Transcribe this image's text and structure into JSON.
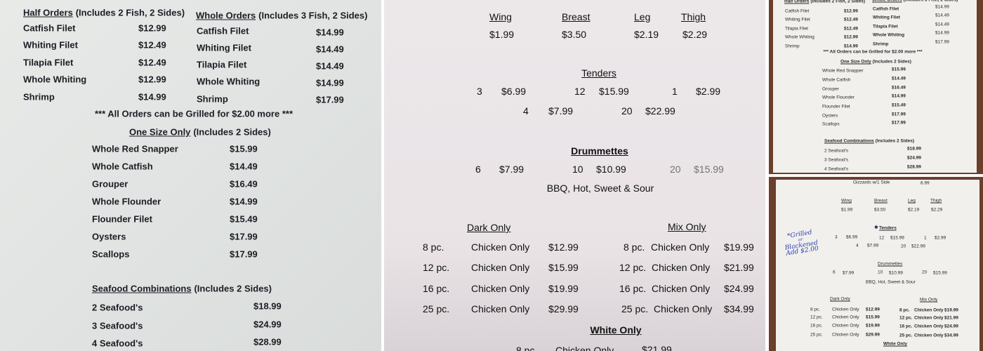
{
  "panel1": {
    "half_header": "Half Orders",
    "half_note": "(Includes 2 Fish, 2 Sides)",
    "whole_header": "Whole Orders",
    "whole_note": "(Includes 3 Fish, 2 Sides)",
    "half_items": [
      {
        "name": "Catfish Filet",
        "price": "$12.99"
      },
      {
        "name": "Whiting Filet",
        "price": "$12.49"
      },
      {
        "name": "Tilapia Filet",
        "price": "$12.49"
      },
      {
        "name": "Whole Whiting",
        "price": "$12.99"
      },
      {
        "name": "Shrimp",
        "price": "$14.99"
      }
    ],
    "whole_items": [
      {
        "name": "Catfish Filet",
        "price": "$14.99"
      },
      {
        "name": "Whiting Filet",
        "price": "$14.49"
      },
      {
        "name": "Tilapia Filet",
        "price": "$14.49"
      },
      {
        "name": "Whole Whiting",
        "price": "$14.99"
      },
      {
        "name": "Shrimp",
        "price": "$17.99"
      }
    ],
    "grilled_note": "*** All Orders can be Grilled for $2.00 more ***",
    "one_size_header": "One Size Only",
    "one_size_note": "(Includes 2 Sides)",
    "one_size_items": [
      {
        "name": "Whole Red Snapper",
        "price": "$15.99"
      },
      {
        "name": "Whole Catfish",
        "price": "$14.49"
      },
      {
        "name": "Grouper",
        "price": "$16.49"
      },
      {
        "name": "Whole Flounder",
        "price": "$14.99"
      },
      {
        "name": "Flounder Filet",
        "price": "$15.49"
      },
      {
        "name": "Oysters",
        "price": "$17.99"
      },
      {
        "name": "Scallops",
        "price": "$17.99"
      }
    ],
    "combo_header": "Seafood Combinations",
    "combo_note": "(Includes 2 Sides)",
    "combo_items": [
      {
        "name": "2 Seafood's",
        "price": "$18.99"
      },
      {
        "name": "3 Seafood's",
        "price": "$24.99"
      },
      {
        "name": "4 Seafood's",
        "price": "$28.99"
      }
    ]
  },
  "panel2": {
    "pieces": [
      {
        "name": "Wing",
        "price": "$1.99"
      },
      {
        "name": "Breast",
        "price": "$3.50"
      },
      {
        "name": "Leg",
        "price": "$2.19"
      },
      {
        "name": "Thigh",
        "price": "$2.29"
      }
    ],
    "tenders_header": "Tenders",
    "tenders": [
      {
        "qty": "3",
        "price": "$6.99"
      },
      {
        "qty": "12",
        "price": "$15.99"
      },
      {
        "qty": "1",
        "price": "$2.99"
      },
      {
        "qty": "4",
        "price": "$7.99"
      },
      {
        "qty": "20",
        "price": "$22.99"
      }
    ],
    "drummettes_header": "Drummettes",
    "drummettes": [
      {
        "qty": "6",
        "price": "$7.99"
      },
      {
        "qty": "10",
        "price": "$10.99"
      },
      {
        "qty": "20",
        "price": "$15.99"
      }
    ],
    "sauces": "BBQ, Hot, Sweet & Sour",
    "dark_header": "Dark Only",
    "mix_header": "Mix Only",
    "dark_items": [
      {
        "size": "8 pc.",
        "desc": "Chicken Only",
        "price": "$12.99"
      },
      {
        "size": "12 pc.",
        "desc": "Chicken Only",
        "price": "$15.99"
      },
      {
        "size": "16 pc.",
        "desc": "Chicken Only",
        "price": "$19.99"
      },
      {
        "size": "25 pc.",
        "desc": "Chicken Only",
        "price": "$29.99"
      }
    ],
    "mix_items": [
      {
        "size": "8 pc.",
        "desc": "Chicken Only",
        "price": "$19.99"
      },
      {
        "size": "12 pc.",
        "desc": "Chicken Only",
        "price": "$21.99"
      },
      {
        "size": "16 pc.",
        "desc": "Chicken Only",
        "price": "$24.99"
      },
      {
        "size": "25 pc.",
        "desc": "Chicken Only",
        "price": "$34.99"
      }
    ],
    "white_header": "White Only",
    "white_items": [
      {
        "size": "8 pc.",
        "desc": "Chicken Only",
        "price": "$21.99"
      }
    ]
  },
  "panel3_bottom": {
    "gizzards": "Gizzards w/1 Side",
    "gizzards_price": "6.99",
    "star_icon": "asterisk-icon",
    "handwritten": [
      "*Grilled",
      "or",
      "Blackened",
      "Add $2.00"
    ],
    "handwritten_color": "#2b3fb5"
  }
}
